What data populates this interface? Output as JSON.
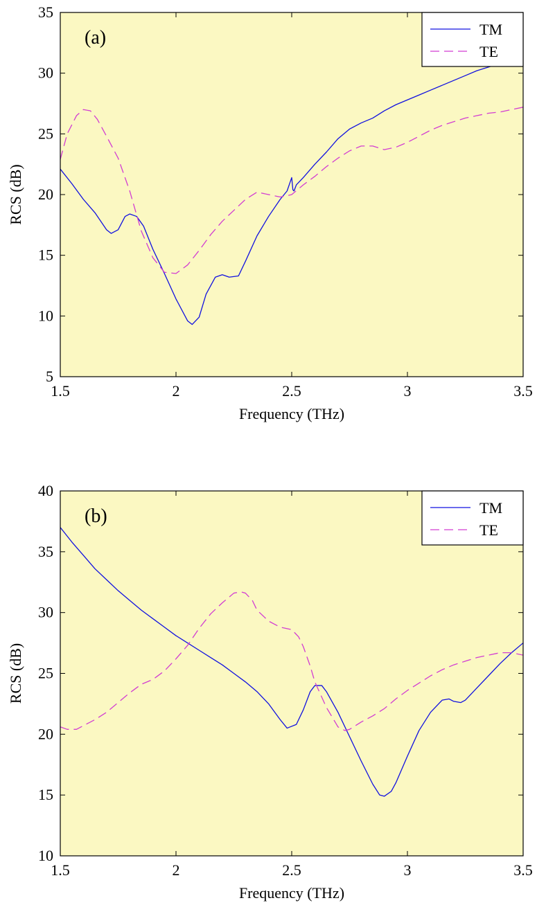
{
  "chart_data": [
    {
      "type": "line",
      "panel_label": "(a)",
      "xlabel": "Frequency (THz)",
      "ylabel": "RCS (dB)",
      "xlim": [
        1.5,
        3.5
      ],
      "ylim": [
        5,
        35
      ],
      "xticks": [
        1.5,
        2,
        2.5,
        3,
        3.5
      ],
      "xtick_labels": [
        "1.5",
        "2",
        "2.5",
        "3",
        "3.5"
      ],
      "yticks": [
        5,
        10,
        15,
        20,
        25,
        30,
        35
      ],
      "ytick_labels": [
        "5",
        "10",
        "15",
        "20",
        "25",
        "30",
        "35"
      ],
      "legend_position": "top-right",
      "background": "#fbf8c2",
      "series": [
        {
          "name": "TM",
          "color": "#1010e0",
          "dash": "solid",
          "x": [
            1.5,
            1.55,
            1.6,
            1.65,
            1.7,
            1.72,
            1.75,
            1.78,
            1.8,
            1.83,
            1.86,
            1.9,
            1.95,
            2.0,
            2.05,
            2.07,
            2.1,
            2.13,
            2.17,
            2.2,
            2.23,
            2.27,
            2.3,
            2.35,
            2.4,
            2.45,
            2.48,
            2.5,
            2.505,
            2.51,
            2.52,
            2.55,
            2.6,
            2.65,
            2.7,
            2.75,
            2.8,
            2.85,
            2.9,
            2.95,
            3.0,
            3.05,
            3.1,
            3.15,
            3.2,
            3.25,
            3.3,
            3.35,
            3.4,
            3.45,
            3.5
          ],
          "y": [
            22.1,
            20.9,
            19.6,
            18.5,
            17.1,
            16.8,
            17.1,
            18.2,
            18.4,
            18.2,
            17.4,
            15.5,
            13.5,
            11.4,
            9.6,
            9.3,
            9.9,
            11.8,
            13.2,
            13.4,
            13.2,
            13.3,
            14.5,
            16.6,
            18.2,
            19.6,
            20.3,
            21.4,
            20.4,
            20.3,
            20.8,
            21.4,
            22.5,
            23.5,
            24.6,
            25.4,
            25.9,
            26.3,
            26.9,
            27.4,
            27.8,
            28.2,
            28.6,
            29.0,
            29.4,
            29.8,
            30.2,
            30.5,
            30.8,
            31.0,
            31.2
          ]
        },
        {
          "name": "TE",
          "color": "#d23cd2",
          "dash": "dashed",
          "x": [
            1.5,
            1.53,
            1.57,
            1.6,
            1.63,
            1.66,
            1.7,
            1.75,
            1.8,
            1.85,
            1.9,
            1.95,
            2.0,
            2.05,
            2.1,
            2.15,
            2.2,
            2.25,
            2.3,
            2.35,
            2.4,
            2.45,
            2.48,
            2.5,
            2.55,
            2.6,
            2.65,
            2.7,
            2.75,
            2.8,
            2.85,
            2.9,
            2.95,
            3.0,
            3.05,
            3.1,
            3.15,
            3.2,
            3.25,
            3.3,
            3.35,
            3.4,
            3.45,
            3.5
          ],
          "y": [
            22.9,
            25.0,
            26.5,
            27.0,
            26.9,
            26.2,
            24.8,
            23.0,
            20.3,
            17.0,
            14.8,
            13.6,
            13.5,
            14.2,
            15.4,
            16.7,
            17.8,
            18.7,
            19.6,
            20.2,
            20.0,
            19.8,
            19.9,
            20.0,
            20.8,
            21.5,
            22.3,
            23.0,
            23.6,
            24.0,
            24.0,
            23.7,
            23.9,
            24.3,
            24.8,
            25.3,
            25.7,
            26.0,
            26.3,
            26.5,
            26.7,
            26.8,
            27.0,
            27.2
          ]
        }
      ]
    },
    {
      "type": "line",
      "panel_label": "(b)",
      "xlabel": "Frequency (THz)",
      "ylabel": "RCS (dB)",
      "xlim": [
        1.5,
        3.5
      ],
      "ylim": [
        10,
        40
      ],
      "xticks": [
        1.5,
        2,
        2.5,
        3,
        3.5
      ],
      "xtick_labels": [
        "1.5",
        "2",
        "2.5",
        "3",
        "3.5"
      ],
      "yticks": [
        10,
        15,
        20,
        25,
        30,
        35,
        40
      ],
      "ytick_labels": [
        "10",
        "15",
        "20",
        "25",
        "30",
        "35",
        "40"
      ],
      "legend_position": "top-right",
      "background": "#fbf8c2",
      "series": [
        {
          "name": "TM",
          "color": "#1010e0",
          "dash": "solid",
          "x": [
            1.5,
            1.55,
            1.6,
            1.65,
            1.7,
            1.75,
            1.8,
            1.85,
            1.9,
            1.95,
            2.0,
            2.05,
            2.1,
            2.15,
            2.2,
            2.25,
            2.3,
            2.35,
            2.4,
            2.45,
            2.48,
            2.52,
            2.55,
            2.58,
            2.6,
            2.63,
            2.65,
            2.7,
            2.75,
            2.8,
            2.85,
            2.88,
            2.9,
            2.93,
            2.95,
            3.0,
            3.05,
            3.1,
            3.15,
            3.18,
            3.2,
            3.23,
            3.25,
            3.3,
            3.35,
            3.4,
            3.45,
            3.5
          ],
          "y": [
            37.0,
            35.8,
            34.7,
            33.6,
            32.7,
            31.8,
            31.0,
            30.2,
            29.5,
            28.8,
            28.1,
            27.5,
            26.9,
            26.3,
            25.7,
            25.0,
            24.3,
            23.5,
            22.5,
            21.2,
            20.5,
            20.8,
            22.0,
            23.5,
            24.0,
            24.0,
            23.5,
            21.8,
            19.8,
            17.8,
            15.9,
            15.0,
            14.9,
            15.3,
            16.0,
            18.2,
            20.3,
            21.8,
            22.8,
            22.9,
            22.7,
            22.6,
            22.8,
            23.8,
            24.8,
            25.8,
            26.7,
            27.5
          ]
        },
        {
          "name": "TE",
          "color": "#d23cd2",
          "dash": "dashed",
          "x": [
            1.5,
            1.53,
            1.57,
            1.6,
            1.65,
            1.7,
            1.75,
            1.8,
            1.85,
            1.9,
            1.95,
            2.0,
            2.05,
            2.1,
            2.15,
            2.2,
            2.25,
            2.28,
            2.3,
            2.33,
            2.35,
            2.4,
            2.45,
            2.5,
            2.53,
            2.55,
            2.58,
            2.6,
            2.65,
            2.7,
            2.73,
            2.75,
            2.8,
            2.85,
            2.9,
            2.95,
            3.0,
            3.05,
            3.1,
            3.15,
            3.2,
            3.25,
            3.3,
            3.35,
            3.4,
            3.45,
            3.5
          ],
          "y": [
            20.6,
            20.4,
            20.4,
            20.7,
            21.2,
            21.8,
            22.6,
            23.4,
            24.1,
            24.5,
            25.2,
            26.2,
            27.3,
            28.7,
            29.9,
            30.8,
            31.6,
            31.7,
            31.6,
            31.0,
            30.2,
            29.3,
            28.8,
            28.6,
            28.0,
            27.2,
            25.6,
            24.3,
            22.2,
            20.6,
            20.3,
            20.4,
            21.0,
            21.5,
            22.1,
            22.9,
            23.6,
            24.2,
            24.8,
            25.3,
            25.7,
            26.0,
            26.3,
            26.5,
            26.7,
            26.7,
            26.5
          ]
        }
      ]
    }
  ]
}
